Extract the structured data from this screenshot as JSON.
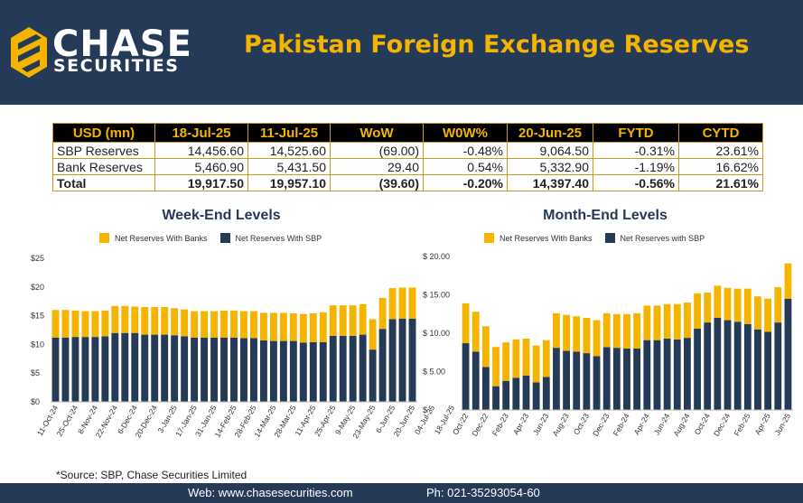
{
  "header": {
    "brand_line1": "CHASE",
    "brand_line2": "SECURITIES",
    "title": "Pakistan Foreign Exchange Reserves"
  },
  "colors": {
    "navy": "#243a57",
    "gold": "#f5b400",
    "sbp": "#243a57",
    "banks": "#f5b400"
  },
  "summary_table": {
    "headers": [
      "USD (mn)",
      "18-Jul-25",
      "11-Jul-25",
      "WoW",
      "W0W%",
      "20-Jun-25",
      "FYTD",
      "CYTD"
    ],
    "rows": [
      [
        "SBP Reserves",
        "14,456.60",
        "14,525.60",
        "(69.00)",
        "-0.48%",
        "9,064.50",
        "-0.31%",
        "23.61%"
      ],
      [
        "Bank Reserves",
        "5,460.90",
        "5,431.50",
        "29.40",
        "0.54%",
        "5,332.90",
        "-1.19%",
        "16.62%"
      ]
    ],
    "total": [
      "Total",
      "19,917.50",
      "19,957.10",
      "(39.60)",
      "-0.20%",
      "14,397.40",
      "-0.56%",
      "21.61%"
    ]
  },
  "chart_data": [
    {
      "type": "bar",
      "stacked": true,
      "title": "Week-End Levels",
      "legend": [
        "Net Reserves With Banks",
        "Net Reserves With SBP"
      ],
      "ylim": [
        0,
        25
      ],
      "yticks": [
        "$0",
        "$5",
        "$10",
        "$15",
        "$20",
        "$25"
      ],
      "xticks": [
        "11-Oct-24",
        "25-Oct-24",
        "8-Nov-24",
        "22-Nov-24",
        "6-Dec-24",
        "20-Dec-24",
        "3-Jan-25",
        "17-Jan-25",
        "31-Jan-25",
        "14-Feb-25",
        "28-Feb-25",
        "14-Mar-25",
        "28-Mar-25",
        "11-Apr-25",
        "25-Apr-25",
        "9-May-25",
        "23-May-25",
        "6-Jun-25",
        "20-Jun-25",
        "04-Jul-25",
        "18-Jul-25"
      ],
      "series": [
        {
          "name": "Net Reserves With SBP",
          "values": [
            11.2,
            11.2,
            11.3,
            11.3,
            11.3,
            11.4,
            12.0,
            12.0,
            12.0,
            11.7,
            11.7,
            11.7,
            11.6,
            11.4,
            11.2,
            11.2,
            11.2,
            11.2,
            11.2,
            11.1,
            11.1,
            10.7,
            10.6,
            10.6,
            10.6,
            10.3,
            10.4,
            10.4,
            11.5,
            11.5,
            11.5,
            11.7,
            9.1,
            12.7,
            14.4,
            14.5,
            14.5
          ]
        },
        {
          "name": "Net Reserves With Banks",
          "values": [
            4.8,
            4.8,
            4.6,
            4.5,
            4.5,
            4.5,
            4.7,
            4.7,
            4.6,
            4.8,
            4.8,
            4.8,
            4.7,
            4.7,
            4.6,
            4.6,
            4.6,
            4.7,
            4.7,
            4.7,
            4.7,
            4.8,
            4.9,
            4.9,
            4.8,
            5.0,
            5.0,
            5.2,
            5.3,
            5.3,
            5.3,
            5.3,
            5.3,
            5.4,
            5.4,
            5.4,
            5.4
          ]
        }
      ]
    },
    {
      "type": "bar",
      "stacked": true,
      "title": "Month-End Levels",
      "legend": [
        "Net Reserves With Banks",
        "Net Reserves with SBP"
      ],
      "ylim": [
        0,
        20
      ],
      "yticks": [
        "$ -",
        "$ 5.00",
        "$ 10.00",
        "$ 15.00",
        "$ 20.00"
      ],
      "xticks": [
        "Oct-22",
        "Dec-22",
        "Feb-23",
        "Apr-23",
        "Jun-23",
        "Aug-23",
        "Oct-23",
        "Dec-23",
        "Feb-24",
        "Apr-24",
        "Jun-24",
        "Aug-24",
        "Oct-24",
        "Dec-24",
        "Feb-25",
        "Apr-25",
        "Jun-25"
      ],
      "series": [
        {
          "name": "Net Reserves with SBP",
          "values": [
            8.7,
            7.6,
            5.6,
            3.1,
            3.8,
            4.2,
            4.5,
            3.6,
            4.3,
            8.1,
            7.7,
            7.6,
            7.4,
            7.0,
            8.2,
            8.1,
            8.0,
            8.0,
            9.1,
            9.1,
            9.3,
            9.2,
            9.4,
            10.6,
            11.4,
            12.0,
            11.7,
            11.5,
            11.2,
            10.5,
            10.2,
            11.4,
            14.5
          ]
        },
        {
          "name": "Net Reserves With Banks",
          "values": [
            5.2,
            5.2,
            5.3,
            5.1,
            5.0,
            5.0,
            4.8,
            4.8,
            4.8,
            4.5,
            4.7,
            4.6,
            4.6,
            4.7,
            4.4,
            4.4,
            4.5,
            4.6,
            4.5,
            4.5,
            4.5,
            4.6,
            4.6,
            4.6,
            3.9,
            4.2,
            4.2,
            4.3,
            4.6,
            4.3,
            4.3,
            4.6,
            4.6
          ]
        }
      ]
    }
  ],
  "footer": {
    "source": "*Source: SBP, Chase Securities Limited",
    "web": "Web: www.chasesecurities.com",
    "phone": "Ph:  021-35293054-60"
  }
}
